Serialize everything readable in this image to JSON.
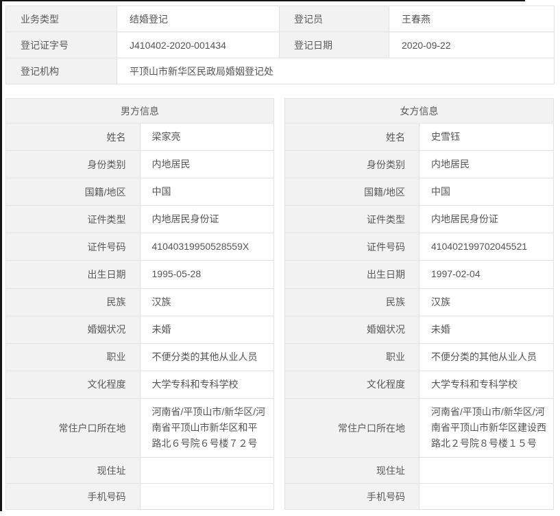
{
  "summary": {
    "business_type_label": "业务类型",
    "business_type": "结婚登记",
    "registrar_label": "登记员",
    "registrar": "王春燕",
    "cert_no_label": "登记证字号",
    "cert_no": "J410402-2020-001434",
    "reg_date_label": "登记日期",
    "reg_date": "2020-09-22",
    "authority_label": "登记机构",
    "authority": "平顶山市新华区民政局婚姻登记处"
  },
  "male": {
    "title": "男方信息",
    "fields": [
      {
        "label": "姓名",
        "value": "梁家亮"
      },
      {
        "label": "身份类别",
        "value": "内地居民"
      },
      {
        "label": "国籍/地区",
        "value": "中国"
      },
      {
        "label": "证件类型",
        "value": "内地居民身份证"
      },
      {
        "label": "证件号码",
        "value": "41040319950528559X"
      },
      {
        "label": "出生日期",
        "value": "1995-05-28"
      },
      {
        "label": "民族",
        "value": "汉族"
      },
      {
        "label": "婚姻状况",
        "value": "未婚"
      },
      {
        "label": "职业",
        "value": "不便分类的其他从业人员"
      },
      {
        "label": "文化程度",
        "value": "大学专科和专科学校"
      },
      {
        "label": "常住户口所在地",
        "value": "河南省/平顶山市/新华区/河南省平顶山市新华区和平路北６号院６号楼７２号"
      },
      {
        "label": "现住址",
        "value": ""
      },
      {
        "label": "手机号码",
        "value": ""
      }
    ]
  },
  "female": {
    "title": "女方信息",
    "fields": [
      {
        "label": "姓名",
        "value": "史雪钰"
      },
      {
        "label": "身份类别",
        "value": "内地居民"
      },
      {
        "label": "国籍/地区",
        "value": "中国"
      },
      {
        "label": "证件类型",
        "value": "内地居民身份证"
      },
      {
        "label": "证件号码",
        "value": "410402199702045521"
      },
      {
        "label": "出生日期",
        "value": "1997-02-04"
      },
      {
        "label": "民族",
        "value": "汉族"
      },
      {
        "label": "婚姻状况",
        "value": "未婚"
      },
      {
        "label": "职业",
        "value": "不便分类的其他从业人员"
      },
      {
        "label": "文化程度",
        "value": "大学专科和专科学校"
      },
      {
        "label": "常住户口所在地",
        "value": "河南省/平顶山市/新华区/河南省平顶山市新华区建设西路北２号院８号楼１５号"
      },
      {
        "label": "现住址",
        "value": ""
      },
      {
        "label": "手机号码",
        "value": ""
      }
    ]
  },
  "colors": {
    "label_bg": "#f2f2f2",
    "border": "#e2e2e2",
    "text": "#555555",
    "edge": "#151515"
  }
}
